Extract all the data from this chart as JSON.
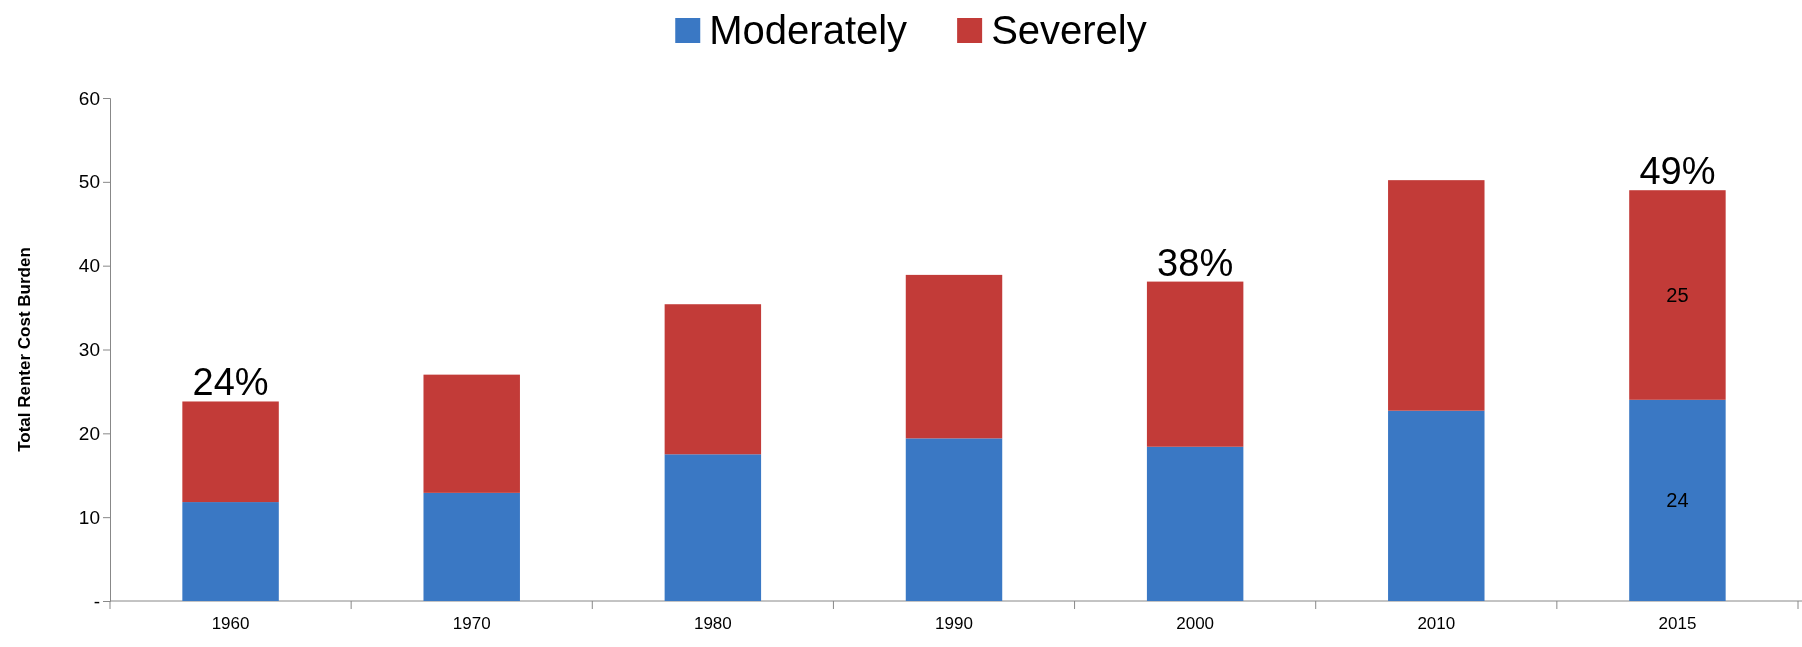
{
  "chart_data": {
    "type": "bar",
    "stacked": true,
    "ylabel": "Total Renter Cost Burden",
    "categories": [
      "1960",
      "1970",
      "1980",
      "1990",
      "2000",
      "2010",
      "2015"
    ],
    "series": [
      {
        "name": "Moderately",
        "color": "#3a78c4",
        "values": [
          11.8,
          12.9,
          17.5,
          19.4,
          18.4,
          22.7,
          24
        ],
        "value_labels": [
          null,
          null,
          null,
          null,
          null,
          null,
          "24"
        ]
      },
      {
        "name": "Severely",
        "color": "#c23b38",
        "values": [
          12.0,
          14.1,
          17.9,
          19.5,
          19.7,
          27.5,
          25
        ],
        "value_labels": [
          null,
          null,
          null,
          null,
          null,
          null,
          "25"
        ]
      }
    ],
    "totals": [
      "24%",
      null,
      null,
      null,
      "38%",
      null,
      "49%"
    ],
    "ylim": [
      0,
      60
    ],
    "yticks": [
      {
        "value": 0,
        "label": "-"
      },
      10,
      20,
      30,
      40,
      50,
      60
    ],
    "grid": false,
    "legend": "top"
  }
}
